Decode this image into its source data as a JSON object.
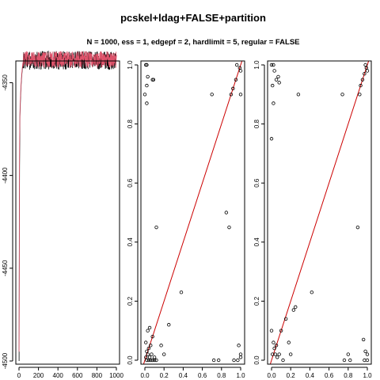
{
  "title": "pcskel+ldag+FALSE+partition",
  "subtitle": "N = 1000, ess = 1, edgepf = 2, hardlimit = 5, regular = FALSE",
  "colors": {
    "trace_black": "#000000",
    "trace_red": "#df536b",
    "diag_line": "#cc0000",
    "points": "#000000"
  },
  "chart_data": [
    {
      "type": "line",
      "title": "",
      "xlabel": "",
      "ylabel": "",
      "xlim": [
        0,
        1000
      ],
      "ylim": [
        -4500,
        -4340
      ],
      "xticks": [
        0,
        200,
        400,
        600,
        800,
        1000
      ],
      "yticks": [
        -4500,
        -4450,
        -4400,
        -4350
      ],
      "series": [
        {
          "color": "#000000",
          "burnin": [
            [
              1,
              -4500
            ],
            [
              3,
              -4440
            ],
            [
              6,
              -4395
            ],
            [
              10,
              -4368
            ],
            [
              15,
              -4360
            ],
            [
              22,
              -4351
            ],
            [
              30,
              -4345
            ],
            [
              40,
              -4340
            ]
          ],
          "plateau": -4333,
          "spread": 10
        },
        {
          "color": "#df536b",
          "burnin": [
            [
              1,
              -4495
            ],
            [
              3,
              -4425
            ],
            [
              6,
              -4383
            ],
            [
              10,
              -4366
            ],
            [
              15,
              -4358
            ],
            [
              22,
              -4350
            ],
            [
              30,
              -4344
            ],
            [
              40,
              -4339
            ]
          ],
          "plateau": -4333,
          "spread": 9
        }
      ]
    },
    {
      "type": "scatter",
      "title": "",
      "xlabel": "",
      "ylabel": "",
      "xlim": [
        0,
        1
      ],
      "ylim": [
        0,
        1
      ],
      "xticks": [
        0.0,
        0.2,
        0.4,
        0.6,
        0.8,
        1.0
      ],
      "yticks": [
        0.0,
        0.2,
        0.4,
        0.6,
        0.8,
        1.0
      ],
      "reference_line": [
        [
          0,
          0
        ],
        [
          1,
          1
        ]
      ],
      "points": [
        [
          0.01,
          1.0
        ],
        [
          0.02,
          1.0
        ],
        [
          0.02,
          0.93
        ],
        [
          0.03,
          0.96
        ],
        [
          0.02,
          0.87
        ],
        [
          0.08,
          0.95
        ],
        [
          0.09,
          0.95
        ],
        [
          0.0,
          0.9
        ],
        [
          0.12,
          0.45
        ],
        [
          0.03,
          0.1
        ],
        [
          0.05,
          0.11
        ],
        [
          0.08,
          0.08
        ],
        [
          0.01,
          0.06
        ],
        [
          0.04,
          0.04
        ],
        [
          0.06,
          0.05
        ],
        [
          0.02,
          0.03
        ],
        [
          0.03,
          0.02
        ],
        [
          0.05,
          0.01
        ],
        [
          0.07,
          0.02
        ],
        [
          0.1,
          0.01
        ],
        [
          0.01,
          0.01
        ],
        [
          0.02,
          0.0
        ],
        [
          0.04,
          0.0
        ],
        [
          0.06,
          0.0
        ],
        [
          0.08,
          0.0
        ],
        [
          0.1,
          0.0
        ],
        [
          0.12,
          0.0
        ],
        [
          0.17,
          0.05
        ],
        [
          0.2,
          0.02
        ],
        [
          0.25,
          0.12
        ],
        [
          0.38,
          0.23
        ],
        [
          0.7,
          0.9
        ],
        [
          0.72,
          0.0
        ],
        [
          0.77,
          0.0
        ],
        [
          0.85,
          0.5
        ],
        [
          0.88,
          0.45
        ],
        [
          0.9,
          0.9
        ],
        [
          0.92,
          0.92
        ],
        [
          0.93,
          0.0
        ],
        [
          0.95,
          0.95
        ],
        [
          0.96,
          1.0
        ],
        [
          0.97,
          0.0
        ],
        [
          0.98,
          0.05
        ],
        [
          0.99,
          0.99
        ],
        [
          1.0,
          0.98
        ],
        [
          1.0,
          0.9
        ],
        [
          1.0,
          0.02
        ],
        [
          1.0,
          0.01
        ]
      ]
    },
    {
      "type": "scatter",
      "title": "",
      "xlabel": "",
      "ylabel": "",
      "xlim": [
        0,
        1
      ],
      "ylim": [
        0,
        1
      ],
      "xticks": [
        0.0,
        0.2,
        0.4,
        0.6,
        0.8,
        1.0
      ],
      "yticks": [
        0.0,
        0.2,
        0.4,
        0.6,
        0.8,
        1.0
      ],
      "reference_line": [
        [
          0,
          0
        ],
        [
          1,
          1
        ]
      ],
      "points": [
        [
          0.0,
          1.0
        ],
        [
          0.02,
          1.0
        ],
        [
          0.03,
          0.98
        ],
        [
          0.01,
          0.93
        ],
        [
          0.02,
          0.87
        ],
        [
          0.05,
          0.95
        ],
        [
          0.07,
          0.96
        ],
        [
          0.08,
          0.94
        ],
        [
          0.0,
          0.75
        ],
        [
          0.28,
          0.9
        ],
        [
          0.0,
          0.1
        ],
        [
          0.02,
          0.06
        ],
        [
          0.03,
          0.04
        ],
        [
          0.05,
          0.05
        ],
        [
          0.01,
          0.02
        ],
        [
          0.04,
          0.02
        ],
        [
          0.06,
          0.01
        ],
        [
          0.08,
          0.02
        ],
        [
          0.1,
          0.1
        ],
        [
          0.12,
          0.0
        ],
        [
          0.15,
          0.14
        ],
        [
          0.18,
          0.06
        ],
        [
          0.2,
          0.02
        ],
        [
          0.23,
          0.17
        ],
        [
          0.25,
          0.18
        ],
        [
          0.42,
          0.23
        ],
        [
          0.76,
          0.0
        ],
        [
          0.8,
          0.02
        ],
        [
          0.82,
          0.0
        ],
        [
          0.74,
          0.9
        ],
        [
          0.9,
          0.45
        ],
        [
          0.92,
          0.9
        ],
        [
          0.93,
          0.93
        ],
        [
          0.95,
          0.95
        ],
        [
          0.97,
          0.97
        ],
        [
          0.98,
          1.0
        ],
        [
          0.99,
          0.99
        ],
        [
          1.0,
          0.98
        ],
        [
          0.96,
          0.07
        ],
        [
          0.98,
          0.03
        ],
        [
          1.0,
          0.02
        ],
        [
          0.97,
          0.0
        ],
        [
          1.0,
          0.0
        ]
      ]
    }
  ]
}
